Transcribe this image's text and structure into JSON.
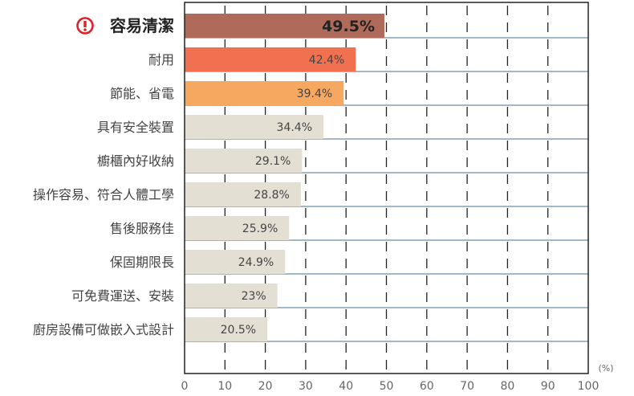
{
  "chart_data": {
    "type": "bar",
    "orientation": "horizontal",
    "categories": [
      "容易清潔",
      "耐用",
      "節能、省電",
      "具有安全裝置",
      "櫥櫃內好收納",
      "操作容易、符合人體工學",
      "售後服務佳",
      "保固期限長",
      "可免費運送、安裝",
      "廚房設備可做嵌入式設計"
    ],
    "values": [
      49.5,
      42.4,
      39.4,
      34.4,
      29.1,
      28.8,
      25.9,
      24.9,
      23,
      20.5
    ],
    "value_labels": [
      "49.5%",
      "42.4%",
      "39.4%",
      "34.4%",
      "29.1%",
      "28.8%",
      "25.9%",
      "24.9%",
      "23%",
      "20.5%"
    ],
    "bar_colors": [
      "#b06a5a",
      "#f07050",
      "#f7a860",
      "#e3e0d3",
      "#e3e0d3",
      "#e3e0d3",
      "#e3e0d3",
      "#e3e0d3",
      "#e3e0d3",
      "#e3e0d3"
    ],
    "highlight_icon": "exclamation-circle-icon",
    "highlight_color": "#e0202a",
    "row_line_color": "#4a6f8a",
    "xlim": [
      0,
      100
    ],
    "xticks": [
      "0",
      "10",
      "20",
      "30",
      "40",
      "50",
      "60",
      "70",
      "80",
      "90",
      "100"
    ],
    "xunit": "(%)",
    "grid": "dashed vertical"
  }
}
